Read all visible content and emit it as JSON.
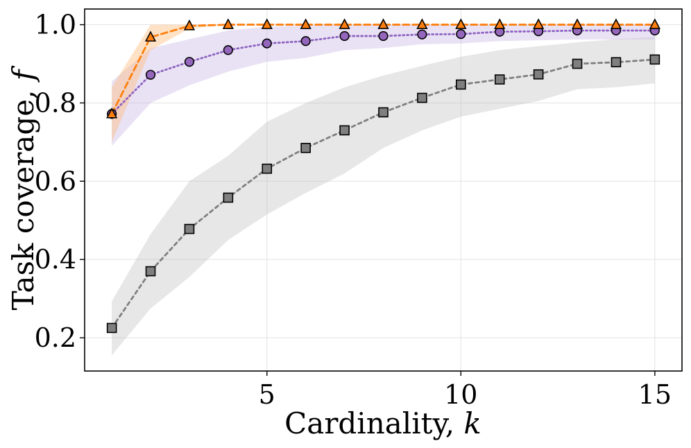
{
  "chart_data": {
    "type": "line",
    "title": "",
    "xlabel": {
      "text": "Cardinality, ",
      "var": "k"
    },
    "ylabel": {
      "text": "Task coverage, ",
      "var": "f"
    },
    "xlim": [
      0.3,
      15.7
    ],
    "ylim": [
      0.115,
      1.04
    ],
    "xticks": [
      5,
      10,
      15
    ],
    "xtick_labels": [
      "5",
      "10",
      "15"
    ],
    "yticks": [
      0.2,
      0.4,
      0.6,
      0.8,
      1.0
    ],
    "ytick_labels": [
      "0.2",
      "0.4",
      "0.6",
      "0.8",
      "1.0"
    ],
    "grid": true,
    "legend": "none",
    "x": [
      1,
      2,
      3,
      4,
      5,
      6,
      7,
      8,
      9,
      10,
      11,
      12,
      13,
      14,
      15
    ],
    "series": [
      {
        "name": "gray-square",
        "color": "#7f7f7f",
        "marker_fill": "#7f7f7f",
        "band_color": "#b0b0b0",
        "band_opacity": 0.3,
        "marker": "square",
        "dash": "5,5",
        "values": [
          0.225,
          0.37,
          0.478,
          0.558,
          0.632,
          0.685,
          0.73,
          0.776,
          0.813,
          0.847,
          0.86,
          0.873,
          0.9,
          0.904,
          0.911
        ],
        "lower": [
          0.155,
          0.275,
          0.355,
          0.45,
          0.515,
          0.57,
          0.62,
          0.685,
          0.73,
          0.765,
          0.785,
          0.805,
          0.835,
          0.84,
          0.85
        ],
        "upper": [
          0.293,
          0.465,
          0.6,
          0.665,
          0.752,
          0.8,
          0.84,
          0.87,
          0.895,
          0.918,
          0.935,
          0.945,
          0.955,
          0.963,
          0.968
        ]
      },
      {
        "name": "purple-circle",
        "color": "#8e63c0",
        "marker_fill": "#9467bd",
        "band_color": "#c6b3e6",
        "band_opacity": 0.38,
        "marker": "circle",
        "dash": "2,4",
        "values": [
          0.772,
          0.872,
          0.905,
          0.935,
          0.952,
          0.958,
          0.971,
          0.971,
          0.975,
          0.976,
          0.982,
          0.983,
          0.985,
          0.985,
          0.985
        ],
        "lower": [
          0.69,
          0.8,
          0.845,
          0.88,
          0.905,
          0.915,
          0.935,
          0.94,
          0.95,
          0.952,
          0.958,
          0.96,
          0.962,
          0.962,
          0.962
        ],
        "upper": [
          0.855,
          0.94,
          0.963,
          0.985,
          0.995,
          0.998,
          1.0,
          1.0,
          1.0,
          1.0,
          1.0,
          1.0,
          1.0,
          1.0,
          1.0
        ]
      },
      {
        "name": "orange-triangle",
        "color": "#ff7f0e",
        "marker_fill": "#ff7f0e",
        "band_color": "#ffbb78",
        "band_opacity": 0.42,
        "marker": "triangle",
        "dash": "9,5",
        "values": [
          0.772,
          0.968,
          0.997,
          1.0,
          1.0,
          1.0,
          1.0,
          1.0,
          1.0,
          1.0,
          1.0,
          1.0,
          1.0,
          1.0,
          1.0
        ],
        "lower": [
          0.7,
          0.935,
          0.99,
          1.0,
          1.0,
          1.0,
          1.0,
          1.0,
          1.0,
          1.0,
          1.0,
          1.0,
          1.0,
          1.0,
          1.0
        ],
        "upper": [
          0.84,
          1.0,
          1.0,
          1.0,
          1.0,
          1.0,
          1.0,
          1.0,
          1.0,
          1.0,
          1.0,
          1.0,
          1.0,
          1.0,
          1.0
        ]
      }
    ]
  }
}
